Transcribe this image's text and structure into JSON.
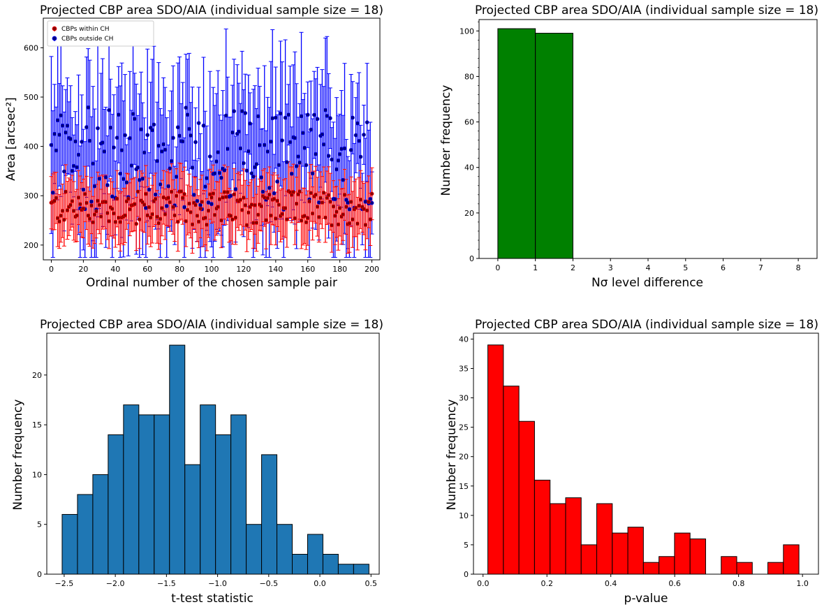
{
  "chart_data": [
    {
      "type": "scatter",
      "title": "Projected CBP area SDO/AIA (individual sample size = 18)",
      "xlabel": "Ordinal number of the chosen sample pair",
      "ylabel": "Area [arcsec²]",
      "xlim": [
        -5,
        205
      ],
      "ylim": [
        170,
        660
      ],
      "xticks": [
        0,
        20,
        40,
        60,
        80,
        100,
        120,
        140,
        160,
        180,
        200
      ],
      "yticks": [
        200,
        300,
        400,
        500,
        600
      ],
      "legend": {
        "position": "top-left",
        "entries": [
          "CBPs within CH",
          "CBPs outside CH"
        ]
      },
      "n_pairs": 200,
      "series": [
        {
          "name": "CBPs within CH",
          "color": "#ff0000",
          "marker_color": "#8b0000",
          "mean_range": [
            240,
            310
          ],
          "err_range": [
            50,
            60
          ]
        },
        {
          "name": "CBPs outside CH",
          "color": "#0000ff",
          "marker_color": "#000080",
          "mean_range": [
            270,
            480
          ],
          "err_range": [
            60,
            180
          ]
        }
      ]
    },
    {
      "type": "bar",
      "title": "Projected CBP area SDO/AIA (individual sample size = 18)",
      "xlabel": "Nσ level difference",
      "ylabel": "Number frequency",
      "bin_edges": [
        0,
        1,
        2
      ],
      "values": [
        101,
        99
      ],
      "color": "#008000",
      "xlim": [
        -0.5,
        8.5
      ],
      "ylim": [
        0,
        105
      ],
      "xticks": [
        0,
        1,
        2,
        3,
        4,
        5,
        6,
        7,
        8
      ],
      "yticks": [
        0,
        20,
        40,
        60,
        80,
        100
      ]
    },
    {
      "type": "bar",
      "title": "Projected CBP area SDO/AIA (individual sample size = 18)",
      "xlabel": "t-test statistic",
      "ylabel": "Number frequency",
      "bin_start": -2.52,
      "bin_width": 0.15,
      "values": [
        6,
        8,
        10,
        14,
        17,
        16,
        16,
        23,
        11,
        17,
        14,
        16,
        5,
        12,
        5,
        2,
        4,
        2,
        1,
        1
      ],
      "color": "#1f77b4",
      "xlim": [
        -2.67,
        0.58
      ],
      "ylim": [
        0,
        24.2
      ],
      "xticks": [
        -2.5,
        -2.0,
        -1.5,
        -1.0,
        -0.5,
        0.0,
        0.5
      ],
      "xtick_labels": [
        "−2.5",
        "−2.0",
        "−1.5",
        "−1.0",
        "−0.5",
        "0.0",
        "0.5"
      ],
      "yticks": [
        0,
        5,
        10,
        15,
        20
      ]
    },
    {
      "type": "bar",
      "title": "Projected CBP area SDO/AIA (individual sample size = 18)",
      "xlabel": "p-value",
      "ylabel": "Number frequency",
      "bin_start": 0.015,
      "bin_width": 0.0487,
      "values": [
        39,
        32,
        26,
        16,
        12,
        13,
        5,
        12,
        7,
        8,
        2,
        3,
        7,
        6,
        0,
        3,
        2,
        0,
        2,
        5
      ],
      "color": "#ff0000",
      "xlim": [
        -0.03,
        1.05
      ],
      "ylim": [
        0,
        41
      ],
      "xticks": [
        0.0,
        0.2,
        0.4,
        0.6,
        0.8,
        1.0
      ],
      "xtick_labels": [
        "0.0",
        "0.2",
        "0.4",
        "0.6",
        "0.8",
        "1.0"
      ],
      "yticks": [
        0,
        5,
        10,
        15,
        20,
        25,
        30,
        35,
        40
      ]
    }
  ]
}
